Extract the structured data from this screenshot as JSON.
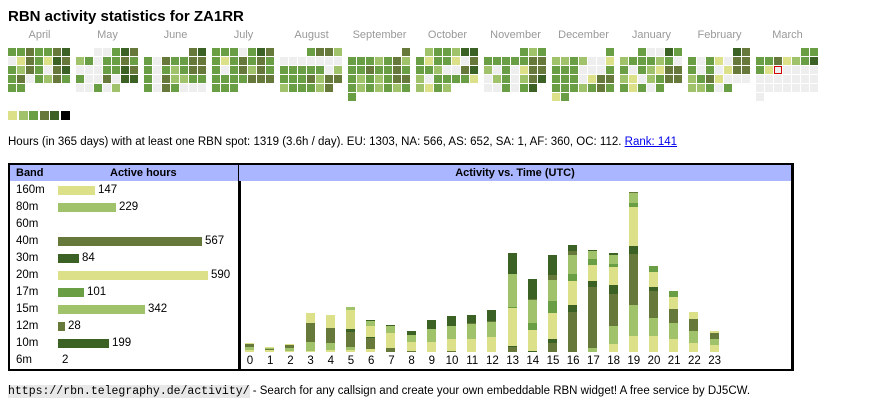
{
  "title": "RBN activity statistics for ZA1RR",
  "colors": {
    "levels": [
      "#eeeeee",
      "#dce189",
      "#9fc26a",
      "#6a9e45",
      "#66793b",
      "#3b6124"
    ],
    "legend": [
      "#dce189",
      "#9fc26a",
      "#6a9e45",
      "#66793b",
      "#3b6124",
      "#000000"
    ],
    "today_outline": "#d40000",
    "header_bg": "#aab6ff"
  },
  "calendar": {
    "months": [
      {
        "label": "April",
        "rows": [
          [
            3,
            3,
            4,
            3,
            3,
            4,
            5
          ],
          [
            0,
            1,
            4,
            3,
            1,
            5,
            4
          ],
          [
            3,
            2,
            4,
            3,
            0,
            4,
            5
          ],
          [
            3,
            4,
            0,
            3,
            2,
            4,
            3
          ],
          [
            3,
            3,
            -1,
            -1,
            -1,
            -1,
            -1
          ]
        ]
      },
      {
        "label": "May",
        "rows": [
          [
            -1,
            -1,
            0,
            0,
            3,
            5,
            4
          ],
          [
            2,
            3,
            0,
            3,
            3,
            4,
            3
          ],
          [
            0,
            0,
            0,
            3,
            3,
            5,
            4
          ],
          [
            3,
            0,
            0,
            4,
            0,
            5,
            5
          ],
          [
            0,
            0,
            3,
            0,
            2,
            -1,
            -1
          ]
        ]
      },
      {
        "label": "June",
        "rows": [
          [
            -1,
            -1,
            -1,
            -1,
            -1,
            4,
            5
          ],
          [
            3,
            0,
            4,
            3,
            3,
            4,
            4
          ],
          [
            3,
            0,
            3,
            2,
            3,
            4,
            4
          ],
          [
            3,
            0,
            4,
            2,
            2,
            3,
            3
          ],
          [
            3,
            0,
            4,
            3,
            0,
            0,
            0
          ]
        ]
      },
      {
        "label": "July",
        "rows": [
          [
            3,
            3,
            3,
            0,
            3,
            5,
            4
          ],
          [
            3,
            1,
            3,
            4,
            3,
            4,
            3
          ],
          [
            3,
            0,
            3,
            4,
            2,
            4,
            3
          ],
          [
            3,
            3,
            3,
            3,
            4,
            4,
            4
          ],
          [
            3,
            3,
            3,
            -1,
            -1,
            -1,
            -1
          ]
        ]
      },
      {
        "label": "August",
        "rows": [
          [
            -1,
            -1,
            -1,
            3,
            4,
            4,
            2
          ],
          [
            0,
            0,
            0,
            0,
            0,
            0,
            0
          ],
          [
            3,
            3,
            3,
            3,
            3,
            0,
            2
          ],
          [
            3,
            3,
            3,
            4,
            2,
            4,
            4
          ],
          [
            2,
            3,
            3,
            3,
            2,
            4,
            -1
          ]
        ]
      },
      {
        "label": "September",
        "rows": [
          [
            -1,
            -1,
            -1,
            -1,
            -1,
            -1,
            4
          ],
          [
            3,
            3,
            3,
            2,
            3,
            4,
            2
          ],
          [
            3,
            3,
            4,
            3,
            3,
            4,
            3
          ],
          [
            3,
            2,
            3,
            2,
            3,
            4,
            4
          ],
          [
            3,
            2,
            3,
            2,
            3,
            2,
            3
          ],
          [
            3,
            -1,
            -1,
            -1,
            -1,
            -1,
            -1
          ]
        ]
      },
      {
        "label": "October",
        "rows": [
          [
            -1,
            2,
            3,
            3,
            2,
            5,
            5
          ],
          [
            3,
            1,
            3,
            3,
            1,
            0,
            4
          ],
          [
            3,
            3,
            2,
            0,
            0,
            4,
            5
          ],
          [
            2,
            0,
            3,
            3,
            3,
            3,
            1
          ],
          [
            2,
            1,
            3,
            2,
            -1,
            -1,
            -1
          ]
        ]
      },
      {
        "label": "November",
        "rows": [
          [
            -1,
            -1,
            -1,
            -1,
            3,
            2,
            3
          ],
          [
            3,
            3,
            3,
            3,
            3,
            4,
            4
          ],
          [
            2,
            0,
            3,
            0,
            1,
            4,
            4
          ],
          [
            0,
            2,
            3,
            0,
            2,
            4,
            5
          ],
          [
            0,
            0,
            3,
            0,
            3,
            5,
            -1
          ]
        ]
      },
      {
        "label": "December",
        "rows": [
          [
            -1,
            -1,
            -1,
            -1,
            -1,
            -1,
            3
          ],
          [
            2,
            2,
            3,
            2,
            0,
            0,
            1
          ],
          [
            3,
            3,
            3,
            0,
            0,
            0,
            3
          ],
          [
            3,
            3,
            3,
            0,
            1,
            4,
            4
          ],
          [
            3,
            3,
            3,
            2,
            3,
            4,
            3
          ],
          [
            1,
            3,
            -1,
            -1,
            -1,
            -1,
            -1
          ]
        ]
      },
      {
        "label": "January",
        "rows": [
          [
            -1,
            -1,
            3,
            0,
            0,
            5,
            3
          ],
          [
            2,
            3,
            3,
            3,
            2,
            3,
            0
          ],
          [
            3,
            0,
            3,
            2,
            1,
            4,
            4
          ],
          [
            2,
            1,
            0,
            2,
            3,
            4,
            4
          ],
          [
            3,
            1,
            3,
            0,
            3,
            -1,
            -1
          ]
        ]
      },
      {
        "label": "February",
        "rows": [
          [
            -1,
            -1,
            -1,
            -1,
            -1,
            5,
            4
          ],
          [
            3,
            0,
            3,
            1,
            0,
            4,
            4
          ],
          [
            3,
            0,
            3,
            0,
            1,
            4,
            4
          ],
          [
            2,
            3,
            4,
            1,
            0,
            0,
            0
          ],
          [
            2,
            2,
            3,
            0,
            3,
            -1,
            -1
          ]
        ]
      },
      {
        "label": "March",
        "rows": [
          [
            -1,
            -1,
            -1,
            -1,
            -1,
            3,
            3
          ],
          [
            3,
            3,
            4,
            1,
            2,
            3,
            5
          ],
          [
            3,
            1,
            9,
            0,
            0,
            0,
            0
          ],
          [
            0,
            0,
            0,
            0,
            0,
            0,
            0
          ],
          [
            0,
            0,
            0,
            0,
            0,
            0,
            0
          ],
          [
            0,
            -1,
            -1,
            -1,
            -1,
            -1,
            -1
          ]
        ]
      }
    ]
  },
  "summary": {
    "text": "Hours (in 365 days) with at least one RBN spot: 1319 (3.6h / day). EU: 1303, NA: 566, AS: 652, SA: 1, AF: 360, OC: 112.",
    "rank_link": "Rank: 141"
  },
  "bands": {
    "header_band": "Band",
    "header_hours": "Active hours",
    "max": 590,
    "rows": [
      {
        "band": "160m",
        "hours": 147,
        "color": "#dce189"
      },
      {
        "band": "80m",
        "hours": 229,
        "color": "#9fc26a"
      },
      {
        "band": "60m",
        "hours": null,
        "color": "#6a9e45"
      },
      {
        "band": "40m",
        "hours": 567,
        "color": "#66793b"
      },
      {
        "band": "30m",
        "hours": 84,
        "color": "#3b6124"
      },
      {
        "band": "20m",
        "hours": 590,
        "color": "#dce189"
      },
      {
        "band": "17m",
        "hours": 101,
        "color": "#6a9e45"
      },
      {
        "band": "15m",
        "hours": 342,
        "color": "#9fc26a"
      },
      {
        "band": "12m",
        "hours": 28,
        "color": "#66793b"
      },
      {
        "band": "10m",
        "hours": 199,
        "color": "#3b6124"
      },
      {
        "band": "6m",
        "hours": 2,
        "color": "#000000"
      }
    ]
  },
  "chart_data": {
    "type": "bar",
    "title": "Activity vs. Time (UTC)",
    "stacked": true,
    "categories": [
      "0",
      "1",
      "2",
      "3",
      "4",
      "5",
      "6",
      "7",
      "8",
      "9",
      "10",
      "11",
      "12",
      "13",
      "14",
      "15",
      "16",
      "17",
      "18",
      "19",
      "20",
      "21",
      "22",
      "23"
    ],
    "segments_bottom_to_top": [
      [
        [
          "#dce189",
          2
        ],
        [
          "#9fc26a",
          3
        ],
        [
          "#66793b",
          3
        ],
        [
          "#dce189",
          1
        ]
      ],
      [
        [
          "#dce189",
          2
        ],
        [
          "#66793b",
          1
        ],
        [
          "#9fc26a",
          1
        ],
        [
          "#dce189",
          1
        ]
      ],
      [
        [
          "#dce189",
          1
        ],
        [
          "#9fc26a",
          3
        ],
        [
          "#66793b",
          3
        ],
        [
          "#dce189",
          1
        ]
      ],
      [
        [
          "#dce189",
          1
        ],
        [
          "#9fc26a",
          9
        ],
        [
          "#66793b",
          19
        ],
        [
          "#dce189",
          10
        ]
      ],
      [
        [
          "#dce189",
          2
        ],
        [
          "#9fc26a",
          7
        ],
        [
          "#66793b",
          15
        ],
        [
          "#dce189",
          13
        ]
      ],
      [
        [
          "#dce189",
          2
        ],
        [
          "#9fc26a",
          3
        ],
        [
          "#66793b",
          15
        ],
        [
          "#3b6124",
          3
        ],
        [
          "#dce189",
          19
        ],
        [
          "#9fc26a",
          3
        ]
      ],
      [
        [
          "#dce189",
          3
        ],
        [
          "#66793b",
          11
        ],
        [
          "#3b6124",
          1
        ],
        [
          "#dce189",
          11
        ],
        [
          "#9fc26a",
          5
        ],
        [
          "#3b6124",
          1
        ]
      ],
      [
        [
          "#66793b",
          4
        ],
        [
          "#dce189",
          15
        ],
        [
          "#9fc26a",
          7
        ],
        [
          "#3b6124",
          1
        ]
      ],
      [
        [
          "#66793b",
          1
        ],
        [
          "#dce189",
          9
        ],
        [
          "#9fc26a",
          7
        ],
        [
          "#3b6124",
          4
        ]
      ],
      [
        [
          "#dce189",
          10
        ],
        [
          "#9fc26a",
          13
        ],
        [
          "#3b6124",
          9
        ]
      ],
      [
        [
          "#66793b",
          1
        ],
        [
          "#dce189",
          12
        ],
        [
          "#9fc26a",
          13
        ],
        [
          "#3b6124",
          10
        ]
      ],
      [
        [
          "#dce189",
          13
        ],
        [
          "#9fc26a",
          15
        ],
        [
          "#66793b",
          1
        ],
        [
          "#3b6124",
          8
        ]
      ],
      [
        [
          "#dce189",
          15
        ],
        [
          "#9fc26a",
          1
        ],
        [
          "#9fc26a",
          14
        ],
        [
          "#66793b",
          1
        ],
        [
          "#3b6124",
          11
        ]
      ],
      [
        [
          "#66793b",
          5
        ],
        [
          "#3b6124",
          1
        ],
        [
          "#dce189",
          38
        ],
        [
          "#6a9e45",
          1
        ],
        [
          "#9fc26a",
          33
        ],
        [
          "#3b6124",
          21
        ]
      ],
      [
        [
          "#3b6124",
          1
        ],
        [
          "#dce189",
          21
        ],
        [
          "#6a9e45",
          7
        ],
        [
          "#9fc26a",
          23
        ],
        [
          "#66793b",
          1
        ],
        [
          "#3b6124",
          20
        ]
      ],
      [
        [
          "#66793b",
          9
        ],
        [
          "#3b6124",
          4
        ],
        [
          "#dce189",
          26
        ],
        [
          "#6a9e45",
          12
        ],
        [
          "#9fc26a",
          21
        ],
        [
          "#66793b",
          5
        ],
        [
          "#3b6124",
          20
        ]
      ],
      [
        [
          "#66793b",
          40
        ],
        [
          "#3b6124",
          7
        ],
        [
          "#dce189",
          24
        ],
        [
          "#6a9e45",
          7
        ],
        [
          "#9fc26a",
          19
        ],
        [
          "#66793b",
          4
        ],
        [
          "#3b6124",
          6
        ]
      ],
      [
        [
          "#9fc26a",
          4
        ],
        [
          "#66793b",
          61
        ],
        [
          "#3b6124",
          6
        ],
        [
          "#dce189",
          16
        ],
        [
          "#6a9e45",
          6
        ],
        [
          "#9fc26a",
          8
        ],
        [
          "#3b6124",
          1
        ]
      ],
      [
        [
          "#dce189",
          8
        ],
        [
          "#9fc26a",
          18
        ],
        [
          "#66793b",
          32
        ],
        [
          "#3b6124",
          9
        ],
        [
          "#dce189",
          18
        ],
        [
          "#6a9e45",
          3
        ],
        [
          "#9fc26a",
          9
        ],
        [
          "#3b6124",
          2
        ]
      ],
      [
        [
          "#dce189",
          16
        ],
        [
          "#9fc26a",
          31
        ],
        [
          "#66793b",
          51
        ],
        [
          "#3b6124",
          8
        ],
        [
          "#dce189",
          39
        ],
        [
          "#6a9e45",
          4
        ],
        [
          "#9fc26a",
          10
        ],
        [
          "#66793b",
          1
        ]
      ],
      [
        [
          "#dce189",
          16
        ],
        [
          "#9fc26a",
          18
        ],
        [
          "#66793b",
          27
        ],
        [
          "#3b6124",
          4
        ],
        [
          "#dce189",
          15
        ],
        [
          "#6a9e45",
          6
        ]
      ],
      [
        [
          "#dce189",
          13
        ],
        [
          "#9fc26a",
          16
        ],
        [
          "#66793b",
          14
        ],
        [
          "#dce189",
          12
        ],
        [
          "#6a9e45",
          6
        ]
      ],
      [
        [
          "#dce189",
          9
        ],
        [
          "#9fc26a",
          12
        ],
        [
          "#66793b",
          12
        ],
        [
          "#dce189",
          7
        ]
      ],
      [
        [
          "#dce189",
          7
        ],
        [
          "#9fc26a",
          6
        ],
        [
          "#66793b",
          6
        ],
        [
          "#dce189",
          2
        ]
      ]
    ]
  },
  "footer": {
    "url": "https://rbn.telegraphy.de/activity/",
    "text": " - Search for any callsign and create your own embeddable RBN widget! A free service by DJ5CW."
  }
}
